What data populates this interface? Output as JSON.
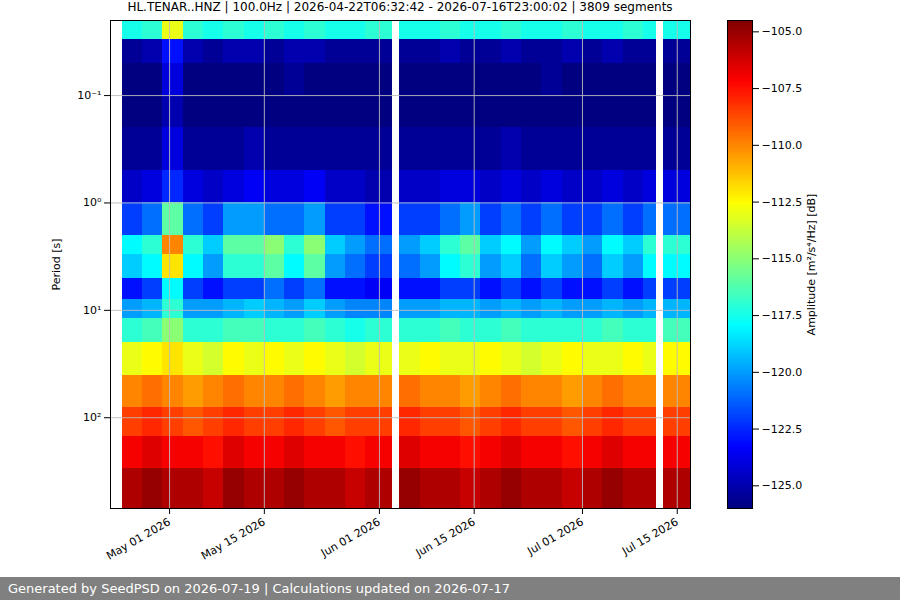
{
  "chart_data": {
    "type": "heatmap",
    "title": "HL.TENAR..HNZ | 100.0Hz | 2026-04-22T06:32:42 - 2026-07-16T23:00:02 | 3809 segments",
    "footer": "Generated by SeedPSD on 2026-07-19 | Calculations updated on 2026-07-17",
    "ylabel": "Period [s]",
    "log": "y",
    "grid": true,
    "color": "jet",
    "xlim": [
      "2026-04-22T06:32:42",
      "2026-07-16T23:00:02"
    ],
    "xticks": [
      {
        "value": "2026-05-01",
        "label": "May 01 2026"
      },
      {
        "value": "2026-05-15",
        "label": "May 15 2026"
      },
      {
        "value": "2026-06-01",
        "label": "Jun 01 2026"
      },
      {
        "value": "2026-06-15",
        "label": "Jun 15 2026"
      },
      {
        "value": "2026-07-01",
        "label": "Jul 01 2026"
      },
      {
        "value": "2026-07-15",
        "label": "Jul 15 2026"
      }
    ],
    "ylim": [
      0.02,
      700
    ],
    "yticks": [
      {
        "value": 0.1,
        "label": "10⁻¹"
      },
      {
        "value": 1,
        "label": "10⁰"
      },
      {
        "value": 10,
        "label": "10¹"
      },
      {
        "value": 100,
        "label": "10²"
      }
    ],
    "x": [
      "2026-04-24",
      "2026-04-27",
      "2026-04-30",
      "2026-05-03",
      "2026-05-06",
      "2026-05-09",
      "2026-05-12",
      "2026-05-15",
      "2026-05-18",
      "2026-05-21",
      "2026-05-24",
      "2026-05-27",
      "2026-05-30",
      "2026-06-03",
      "2026-06-04",
      "2026-06-07",
      "2026-06-10",
      "2026-06-13",
      "2026-06-16",
      "2026-06-19",
      "2026-06-22",
      "2026-06-25",
      "2026-06-28",
      "2026-07-01",
      "2026-07-04",
      "2026-07-07",
      "2026-07-10",
      "2026-07-12",
      "2026-07-13"
    ],
    "period_edges": [
      0.02,
      0.03,
      0.05,
      0.1,
      0.2,
      0.5,
      1,
      2,
      3,
      5,
      8,
      12,
      20,
      40,
      80,
      150,
      300,
      700
    ],
    "values": [
      [
        -117.5,
        -117,
        -113,
        -117,
        -117.5,
        -117,
        -117.5,
        -117,
        -117.5,
        -117,
        -117.5,
        -117.5,
        -117,
        null,
        -117.5,
        -117.5,
        -117,
        -117.5,
        -117.5,
        -117,
        -117.5,
        -117.5,
        -117,
        -117.5,
        -117.5,
        -117,
        -117.5,
        null,
        -117.5
      ],
      [
        -125.5,
        -125,
        -123,
        -125,
        -125.5,
        -125,
        -125,
        -125.5,
        -125,
        -125,
        -125.5,
        -125.5,
        -125.5,
        null,
        -125.5,
        -125.5,
        -125,
        -125.5,
        -125.5,
        -125,
        -125.5,
        -125.5,
        -125,
        -125.5,
        -125,
        -125.5,
        -125.5,
        null,
        -125.5
      ],
      [
        -126,
        -126,
        -124,
        -126,
        -126,
        -126,
        -126,
        -126,
        -125.5,
        -126,
        -126,
        -126,
        -126,
        null,
        -126,
        -126,
        -126,
        -126,
        -126,
        -126,
        -126,
        -125.5,
        -126,
        -126,
        -126,
        -126,
        -126,
        null,
        -126
      ],
      [
        -126,
        -126,
        -125,
        -126,
        -126,
        -126,
        -126,
        -126,
        -126,
        -126,
        -126,
        -126,
        -126,
        null,
        -126,
        -126,
        -126,
        -126,
        -126,
        -126,
        -126,
        -126,
        -126,
        -126,
        -126,
        -126,
        -126,
        null,
        -126
      ],
      [
        -125.5,
        -125.5,
        -124,
        -125.5,
        -125.5,
        -125.5,
        -125,
        -125.5,
        -125.5,
        -125.5,
        -125.5,
        -125.5,
        -125.5,
        null,
        -125.5,
        -125.5,
        -125.5,
        -125.5,
        -125.5,
        -125,
        -125.5,
        -125.5,
        -125.5,
        -125.5,
        -125.5,
        -125.5,
        -125.5,
        null,
        -125.5
      ],
      [
        -124.5,
        -124,
        -122.5,
        -124,
        -124.5,
        -124,
        -123.5,
        -124,
        -124,
        -123.5,
        -124.5,
        -124.5,
        -125,
        null,
        -124.5,
        -124.5,
        -124,
        -124,
        -124.5,
        -124,
        -124.5,
        -124,
        -124.5,
        -124.5,
        -124,
        -124.5,
        -124,
        null,
        -124
      ],
      [
        -122,
        -121,
        -116,
        -121,
        -122,
        -120,
        -120,
        -121,
        -121,
        -120,
        -122,
        -122,
        -123,
        null,
        -122,
        -122,
        -121,
        -120,
        -122,
        -121,
        -122,
        -121,
        -122,
        -122,
        -121,
        -122,
        -121,
        null,
        -121
      ],
      [
        -118,
        -117,
        -110,
        -117,
        -119,
        -116,
        -116,
        -115,
        -117,
        -115,
        -119,
        -120,
        -121,
        null,
        -120,
        -119,
        -117,
        -116,
        -119,
        -118,
        -120,
        -118,
        -119,
        -120,
        -118,
        -119,
        -117,
        null,
        -117
      ],
      [
        -119,
        -118,
        -112,
        -118,
        -120,
        -117,
        -117,
        -116,
        -118,
        -116,
        -120,
        -121,
        -122,
        null,
        -121,
        -120,
        -118,
        -117,
        -120,
        -119,
        -121,
        -119,
        -120,
        -121,
        -119,
        -120,
        -118,
        null,
        -118
      ],
      [
        -123,
        -122,
        -118,
        -122,
        -123,
        -122,
        -122,
        -121,
        -122,
        -121,
        -123,
        -123,
        -123.5,
        null,
        -123,
        -123,
        -122,
        -122,
        -123,
        -122,
        -123,
        -122,
        -123,
        -123,
        -122,
        -123,
        -122,
        null,
        -122
      ],
      [
        -120,
        -119.5,
        -117,
        -120,
        -120,
        -119.5,
        -119,
        -119.5,
        -120,
        -119,
        -120,
        -120.5,
        -120.5,
        null,
        -120,
        -120,
        -119.5,
        -119.5,
        -120,
        -119.5,
        -120,
        -119.5,
        -120,
        -120,
        -119.5,
        -120,
        -119.5,
        null,
        -119.5
      ],
      [
        -117,
        -116.5,
        -115,
        -117,
        -117,
        -116.5,
        -116.5,
        -117,
        -117,
        -116.5,
        -117,
        -117.5,
        -117,
        null,
        -117,
        -117,
        -116.5,
        -117,
        -117,
        -116.5,
        -117,
        -117,
        -117,
        -117,
        -116.5,
        -117,
        -117,
        null,
        -116.5
      ],
      [
        -113,
        -112.5,
        -112,
        -113,
        -113.5,
        -112.5,
        -113,
        -112.5,
        -113,
        -112.5,
        -113,
        -113.5,
        -113,
        null,
        -113,
        -112.5,
        -113,
        -113,
        -112.5,
        -113,
        -113.5,
        -113,
        -112.5,
        -113,
        -113,
        -112.5,
        -113,
        null,
        -112.5
      ],
      [
        -110,
        -109.5,
        -110,
        -110.5,
        -110,
        -109.5,
        -110,
        -110,
        -109.5,
        -110,
        -110.5,
        -110,
        -110,
        null,
        -109.5,
        -110,
        -110,
        -110.5,
        -110,
        -109.5,
        -110,
        -110,
        -110.5,
        -110,
        -109.5,
        -110,
        -110,
        null,
        -110
      ],
      [
        -108.5,
        -108,
        -108.5,
        -109,
        -108.5,
        -108,
        -108.5,
        -108.5,
        -108,
        -108.5,
        -109,
        -108.5,
        -108.5,
        null,
        -108,
        -108.5,
        -108.5,
        -109,
        -108.5,
        -108,
        -108.5,
        -108.5,
        -109,
        -108.5,
        -108,
        -108.5,
        -108.5,
        null,
        -108.5
      ],
      [
        -107,
        -106.5,
        -107,
        -107,
        -107.5,
        -106.5,
        -107,
        -107,
        -106.5,
        -107,
        -107,
        -107.5,
        -107,
        null,
        -106.5,
        -107,
        -107,
        -107.5,
        -107,
        -106.5,
        -107,
        -107,
        -107.5,
        -107,
        -106.5,
        -107,
        -107,
        null,
        -107
      ],
      [
        -105.5,
        -105,
        -105.5,
        -105.5,
        -106,
        -105,
        -105.5,
        -105.5,
        -105,
        -105.5,
        -105.5,
        -106,
        -105.5,
        null,
        -105,
        -105.5,
        -105.5,
        -106,
        -105.5,
        -105,
        -105.5,
        -105.5,
        -106,
        -105.5,
        -105,
        -105.5,
        -105.5,
        null,
        -105.5
      ]
    ],
    "colorbar": {
      "label": "Amplitude [m²/s⁴/Hz] [dB]",
      "lim": [
        -126,
        -104.5
      ],
      "ticks": [
        {
          "value": -125,
          "label": "−125.0"
        },
        {
          "value": -122.5,
          "label": "−122.5"
        },
        {
          "value": -120,
          "label": "−120.0"
        },
        {
          "value": -117.5,
          "label": "−117.5"
        },
        {
          "value": -115,
          "label": "−115.0"
        },
        {
          "value": -112.5,
          "label": "−112.5"
        },
        {
          "value": -110,
          "label": "−110.0"
        },
        {
          "value": -107.5,
          "label": "−107.5"
        },
        {
          "value": -105,
          "label": "−105.0"
        }
      ]
    }
  }
}
